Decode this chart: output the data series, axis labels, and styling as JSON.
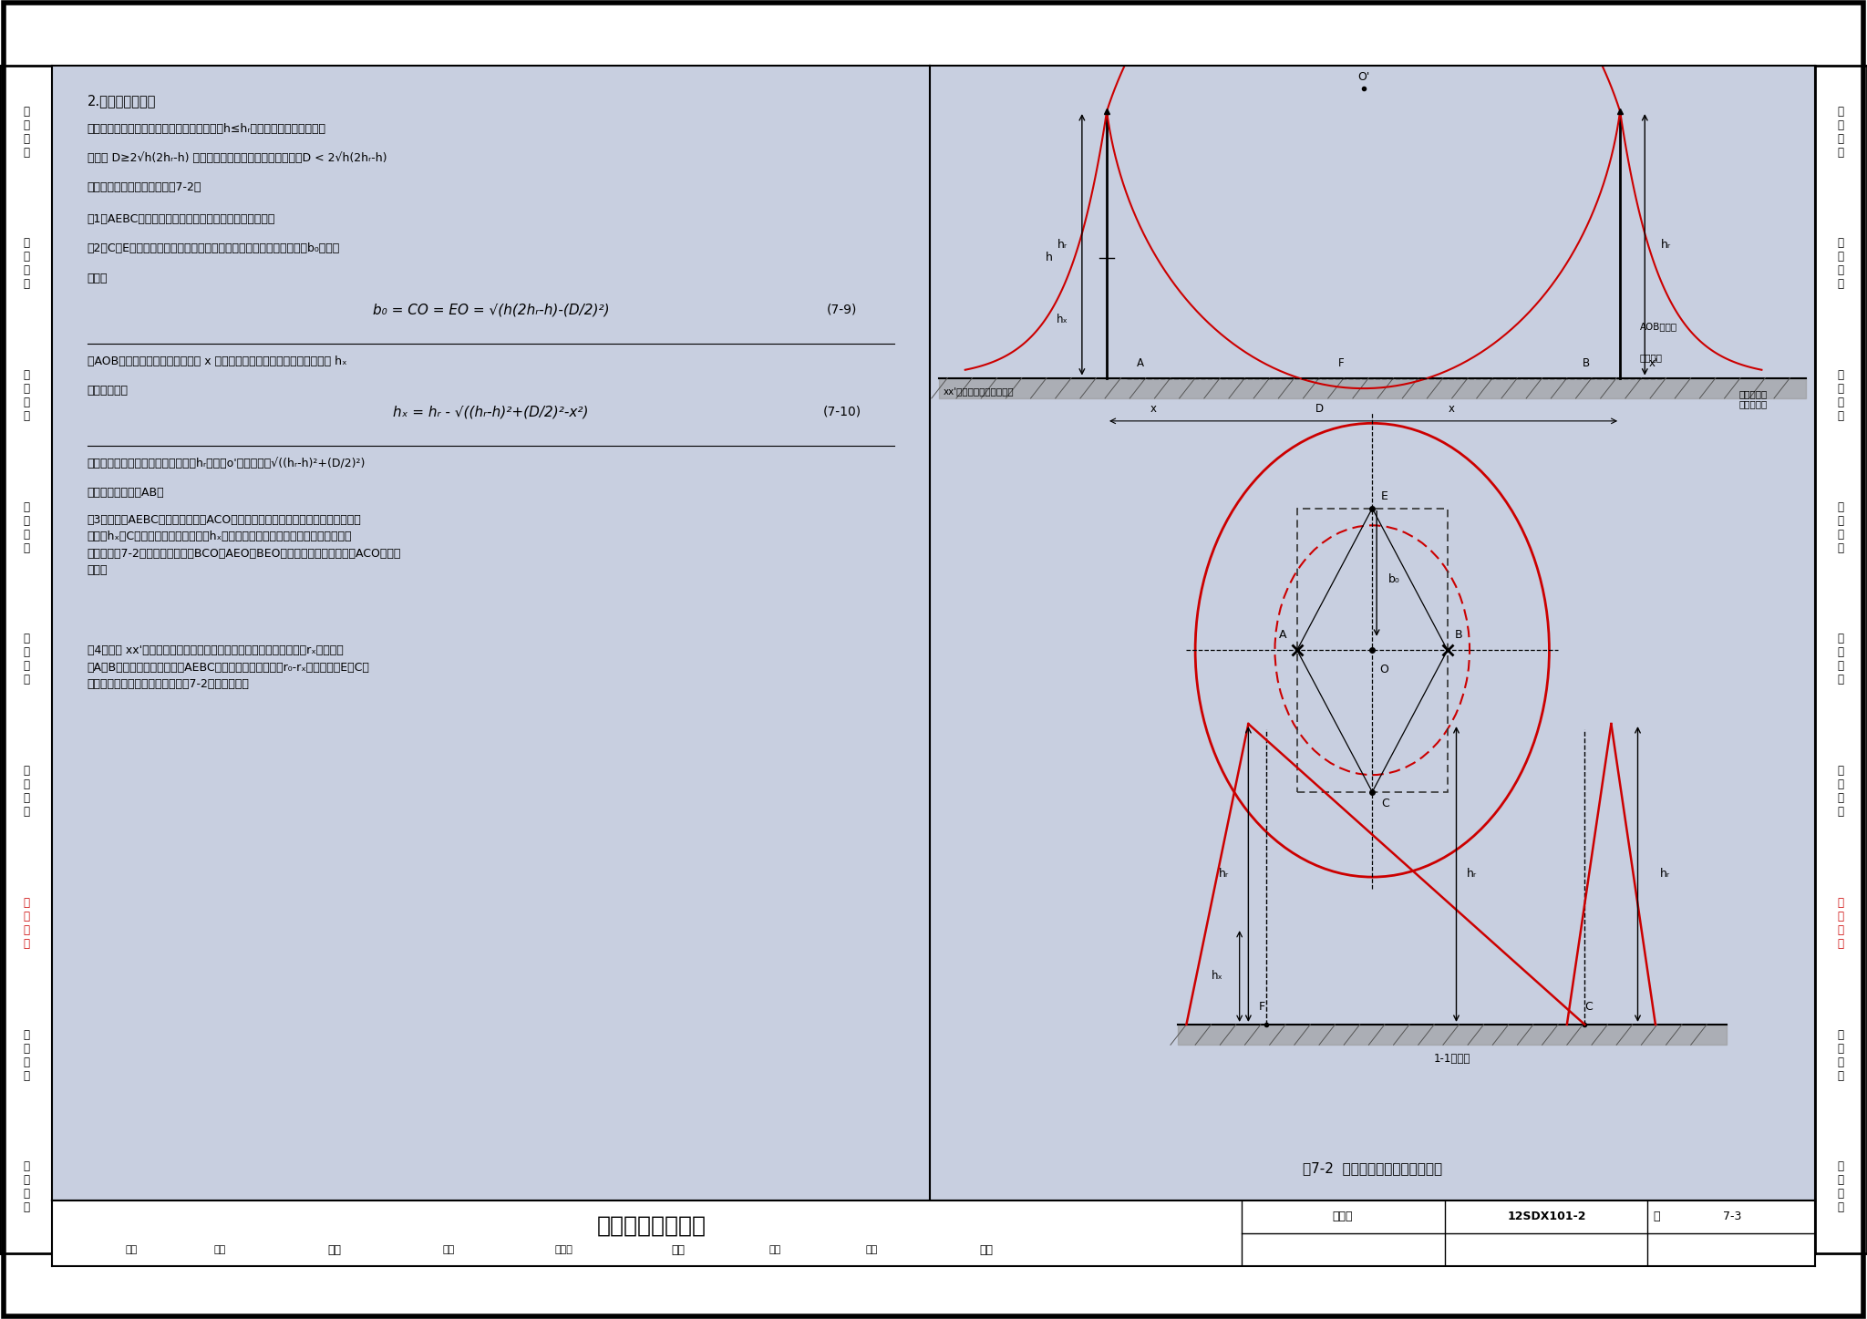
{
  "title": "接闪杆的保护范围",
  "figure_number": "图集号",
  "figure_id": "12SDX101-2",
  "page_label": "页",
  "page_number": "7-3",
  "fig_caption": "图7-2  两支等高接闪杆的保护范围",
  "section_label": "1-1剖面图",
  "left_side_labels": [
    "负\n荷\n计\n算",
    "短\n路\n计\n算",
    "继\n电\n保\n护",
    "线\n缆\n截\n面",
    "常\n用\n设\n备",
    "照\n明\n计\n算",
    "防\n雷\n接\n地",
    "弱\n电\n计\n算",
    "工\n程\n示\n例"
  ],
  "right_side_labels": [
    "负\n荷\n计\n算",
    "短\n路\n计\n算",
    "继\n电\n保\n护",
    "线\n缆\n截\n面",
    "常\n用\n设\n备",
    "照\n明\n计\n算",
    "防\n雷\n接\n地",
    "弱\n电\n计\n算",
    "工\n程\n示\n例"
  ],
  "highlight_idx": 6,
  "bg_color": "#c8cfe0",
  "side_tab_highlight": "#cc0000",
  "border_color": "#000000",
  "text_color": "#000000",
  "red_color": "#cc0000"
}
